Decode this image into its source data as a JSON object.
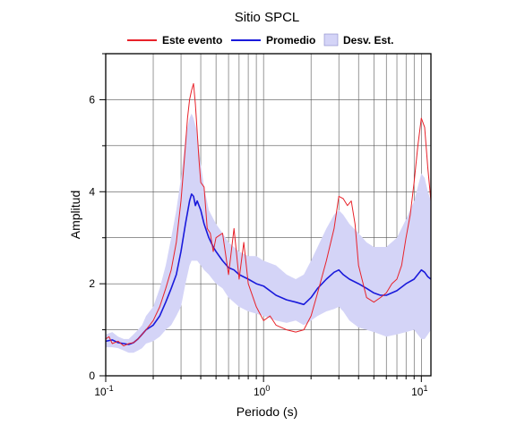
{
  "chart_data": {
    "type": "line",
    "title": "Sitio SPCL",
    "xlabel": "Periodo (s)",
    "ylabel": "Amplitud",
    "xscale": "log",
    "xlim": [
      0.1,
      11.5
    ],
    "ylim": [
      0,
      7
    ],
    "grid": true,
    "legend_placement": "top",
    "x_ticks": [
      {
        "value": 0.1,
        "base": "10",
        "exp": "-1"
      },
      {
        "value": 1,
        "base": "10",
        "exp": "0"
      },
      {
        "value": 10,
        "base": "10",
        "exp": "1"
      }
    ],
    "y_ticks": [
      {
        "value": 0,
        "label": "0"
      },
      {
        "value": 2,
        "label": "2"
      },
      {
        "value": 4,
        "label": "4"
      },
      {
        "value": 6,
        "label": "6"
      }
    ],
    "legend": [
      {
        "label": "Este evento",
        "kind": "line",
        "color": "#e8222a"
      },
      {
        "label": "Promedio",
        "kind": "line",
        "color": "#1a1adb"
      },
      {
        "label": "Desv. Est.",
        "kind": "band",
        "color": "#d4d4f7"
      }
    ],
    "series": [
      {
        "name": "Este evento",
        "color": "#e8222a",
        "x": [
          0.1,
          0.105,
          0.11,
          0.12,
          0.13,
          0.14,
          0.15,
          0.16,
          0.17,
          0.18,
          0.19,
          0.2,
          0.22,
          0.24,
          0.26,
          0.28,
          0.3,
          0.32,
          0.33,
          0.34,
          0.35,
          0.36,
          0.37,
          0.38,
          0.39,
          0.4,
          0.42,
          0.44,
          0.46,
          0.48,
          0.5,
          0.55,
          0.6,
          0.65,
          0.7,
          0.75,
          0.8,
          0.9,
          1.0,
          1.1,
          1.2,
          1.4,
          1.6,
          1.8,
          2.0,
          2.2,
          2.5,
          2.8,
          3.0,
          3.2,
          3.4,
          3.6,
          3.8,
          4.0,
          4.5,
          5.0,
          5.5,
          6.0,
          6.5,
          7.0,
          7.5,
          8.0,
          8.5,
          9.0,
          9.5,
          10.0,
          10.5,
          11.0,
          11.5
        ],
        "values": [
          0.8,
          0.85,
          0.7,
          0.75,
          0.65,
          0.7,
          0.72,
          0.8,
          0.9,
          1.0,
          1.1,
          1.2,
          1.5,
          1.9,
          2.3,
          2.9,
          3.8,
          5.0,
          5.6,
          6.0,
          6.2,
          6.35,
          5.9,
          5.3,
          4.7,
          4.2,
          4.1,
          3.2,
          3.1,
          2.7,
          3.0,
          3.1,
          2.2,
          3.2,
          2.1,
          2.9,
          2.0,
          1.5,
          1.2,
          1.3,
          1.1,
          1.0,
          0.95,
          1.0,
          1.3,
          1.8,
          2.5,
          3.2,
          3.9,
          3.85,
          3.7,
          3.8,
          3.3,
          2.4,
          1.7,
          1.6,
          1.7,
          1.8,
          2.0,
          2.1,
          2.4,
          3.0,
          3.5,
          4.2,
          5.0,
          5.6,
          5.4,
          4.5,
          3.8
        ]
      },
      {
        "name": "Promedio",
        "color": "#1a1adb",
        "x": [
          0.1,
          0.11,
          0.12,
          0.13,
          0.14,
          0.15,
          0.16,
          0.17,
          0.18,
          0.19,
          0.2,
          0.22,
          0.24,
          0.26,
          0.28,
          0.3,
          0.32,
          0.34,
          0.35,
          0.36,
          0.37,
          0.38,
          0.4,
          0.42,
          0.45,
          0.48,
          0.5,
          0.55,
          0.6,
          0.65,
          0.7,
          0.8,
          0.9,
          1.0,
          1.2,
          1.4,
          1.6,
          1.8,
          2.0,
          2.2,
          2.5,
          2.8,
          3.0,
          3.2,
          3.5,
          4.0,
          4.5,
          5.0,
          5.5,
          6.0,
          7.0,
          8.0,
          9.0,
          10.0,
          10.5,
          11.0,
          11.5
        ],
        "values": [
          0.75,
          0.78,
          0.72,
          0.7,
          0.68,
          0.72,
          0.8,
          0.9,
          1.0,
          1.05,
          1.1,
          1.3,
          1.6,
          1.9,
          2.2,
          2.7,
          3.3,
          3.8,
          3.95,
          3.9,
          3.7,
          3.8,
          3.6,
          3.3,
          3.0,
          2.8,
          2.7,
          2.5,
          2.35,
          2.3,
          2.2,
          2.1,
          2.0,
          1.95,
          1.75,
          1.65,
          1.6,
          1.55,
          1.7,
          1.9,
          2.1,
          2.25,
          2.3,
          2.2,
          2.1,
          2.0,
          1.9,
          1.8,
          1.75,
          1.75,
          1.85,
          2.0,
          2.1,
          2.3,
          2.25,
          2.15,
          2.1
        ]
      }
    ],
    "band": {
      "name": "Desv. Est.",
      "x": [
        0.1,
        0.11,
        0.12,
        0.13,
        0.14,
        0.15,
        0.16,
        0.17,
        0.18,
        0.2,
        0.22,
        0.24,
        0.26,
        0.28,
        0.3,
        0.32,
        0.34,
        0.35,
        0.36,
        0.38,
        0.4,
        0.42,
        0.45,
        0.5,
        0.55,
        0.6,
        0.7,
        0.8,
        0.9,
        1.0,
        1.2,
        1.4,
        1.6,
        1.8,
        2.0,
        2.2,
        2.5,
        2.8,
        3.0,
        3.2,
        3.5,
        4.0,
        4.5,
        5.0,
        5.5,
        6.0,
        7.0,
        8.0,
        9.0,
        10.0,
        10.5,
        11.0,
        11.5
      ],
      "upper": [
        0.9,
        0.95,
        0.85,
        0.8,
        0.8,
        0.9,
        1.0,
        1.1,
        1.3,
        1.5,
        1.9,
        2.4,
        3.0,
        3.6,
        4.3,
        5.2,
        5.6,
        5.7,
        5.6,
        5.3,
        4.6,
        4.1,
        3.6,
        3.3,
        3.1,
        2.9,
        2.7,
        2.6,
        2.6,
        2.5,
        2.4,
        2.2,
        2.1,
        2.2,
        2.5,
        2.8,
        3.2,
        3.5,
        3.6,
        3.5,
        3.3,
        3.1,
        2.9,
        2.8,
        2.8,
        2.8,
        3.0,
        3.4,
        3.8,
        4.4,
        4.3,
        4.0,
        3.8
      ],
      "lower": [
        0.62,
        0.62,
        0.6,
        0.55,
        0.5,
        0.5,
        0.55,
        0.6,
        0.7,
        0.75,
        0.85,
        1.0,
        1.1,
        1.3,
        1.5,
        2.0,
        2.4,
        2.5,
        2.5,
        2.5,
        2.4,
        2.3,
        2.2,
        2.0,
        1.9,
        1.7,
        1.5,
        1.4,
        1.35,
        1.3,
        1.2,
        1.15,
        1.2,
        1.1,
        1.2,
        1.3,
        1.4,
        1.45,
        1.5,
        1.4,
        1.2,
        1.05,
        1.0,
        0.95,
        0.9,
        0.85,
        0.9,
        0.95,
        1.0,
        0.8,
        0.8,
        0.9,
        1.0
      ]
    }
  }
}
